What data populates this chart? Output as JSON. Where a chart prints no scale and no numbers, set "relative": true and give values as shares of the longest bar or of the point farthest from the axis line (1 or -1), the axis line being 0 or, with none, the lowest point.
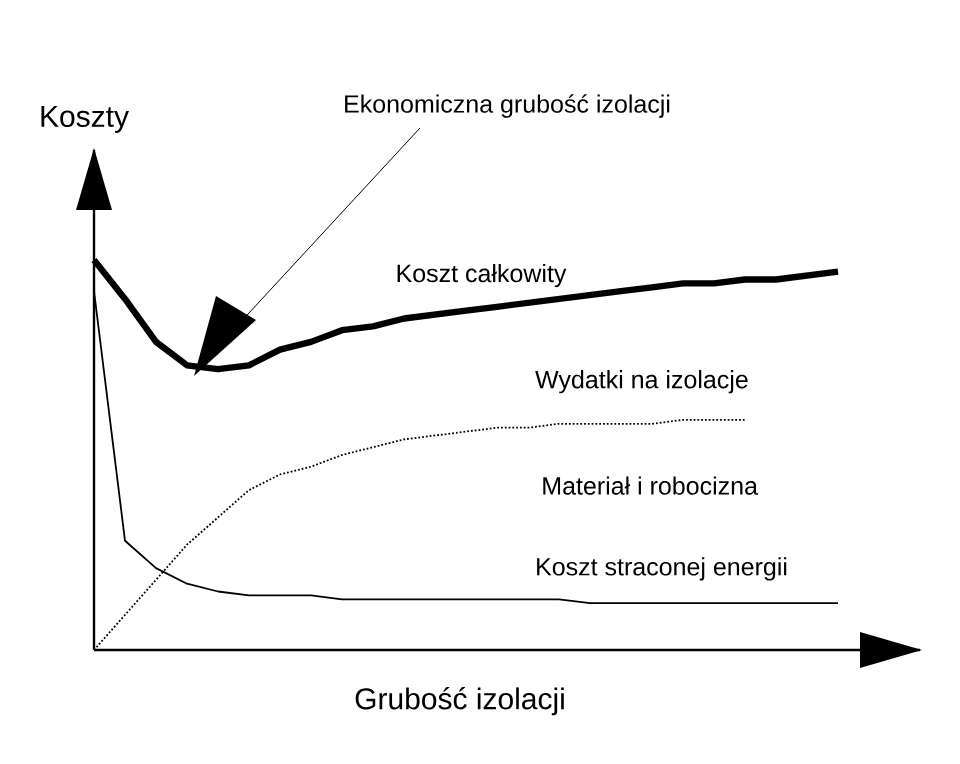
{
  "chart_data": {
    "type": "line",
    "xlabel": "Grubość izolacji",
    "ylabel": "Koszty",
    "relative": true,
    "categories": [
      null,
      null,
      null,
      null,
      null,
      null,
      null,
      null,
      null,
      null,
      null,
      null,
      null,
      null,
      null,
      null,
      null,
      null,
      null,
      null,
      null,
      null,
      null,
      null,
      null
    ],
    "series": [
      {
        "name": "Koszt całkowity",
        "color": "#000000",
        "line_style": "solid",
        "values": [
          1,
          0.9,
          0.79,
          0.73,
          0.72,
          0.73,
          0.77,
          0.79,
          0.82,
          0.83,
          0.85,
          0.86,
          0.87,
          0.88,
          0.89,
          0.9,
          0.91,
          0.92,
          0.93,
          0.94,
          0.94,
          0.95,
          0.95,
          0.96,
          0.97
        ]
      },
      {
        "name": "Wydatki na izolacje",
        "color": "#000000",
        "line_style": "dotted",
        "values": [
          0,
          0.09,
          0.18,
          0.27,
          0.34,
          0.41,
          0.45,
          0.47,
          0.5,
          0.52,
          0.54,
          0.55,
          0.56,
          0.57,
          0.57,
          0.58,
          0.58,
          0.58,
          0.58,
          0.59,
          0.59,
          0.59,
          null,
          null,
          null
        ]
      },
      {
        "name": "Koszt straconej energii",
        "color": "#000000",
        "line_style": "solid",
        "values": [
          0.92,
          0.28,
          0.21,
          0.17,
          0.15,
          0.14,
          0.14,
          0.14,
          0.13,
          0.13,
          0.13,
          0.13,
          0.13,
          0.13,
          0.13,
          0.13,
          0.12,
          0.12,
          0.12,
          0.12,
          0.12,
          0.12,
          0.12,
          0.12,
          0.12
        ]
      }
    ],
    "annotations": [
      "Ekonomiczna grubość izolacji",
      "Materiał i robocizna"
    ]
  }
}
